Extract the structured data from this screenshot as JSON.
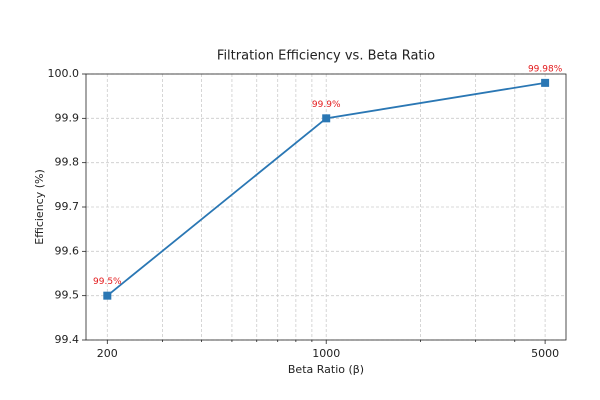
{
  "chart_data": {
    "type": "line",
    "title": "Filtration Efficiency vs. Beta Ratio",
    "x_label": "Beta Ratio (β)",
    "y_label": "Efficiency (%)",
    "x": [
      200,
      1000,
      5000
    ],
    "series": [
      {
        "name": "Efficiency",
        "color": "#2a77b4",
        "values": [
          99.5,
          99.9,
          99.98
        ],
        "value_labels": [
          "99.5%",
          "99.9%",
          "99.98%"
        ]
      }
    ],
    "value_label_color": "#e31a1c",
    "x_scale": "log",
    "xlim": [
      171,
      5830
    ],
    "xticks": [
      200,
      1000,
      5000
    ],
    "xticks_minor": [
      300,
      400,
      500,
      600,
      700,
      800,
      900,
      2000,
      3000,
      4000
    ],
    "ylim": [
      99.4,
      {
        "value": 100,
        "label": "100.0"
      }
    ],
    "yticks": [
      99.4,
      99.5,
      99.6,
      99.7,
      99.8,
      99.9,
      {
        "value": 100,
        "label": "100.0"
      }
    ],
    "grid": true
  }
}
